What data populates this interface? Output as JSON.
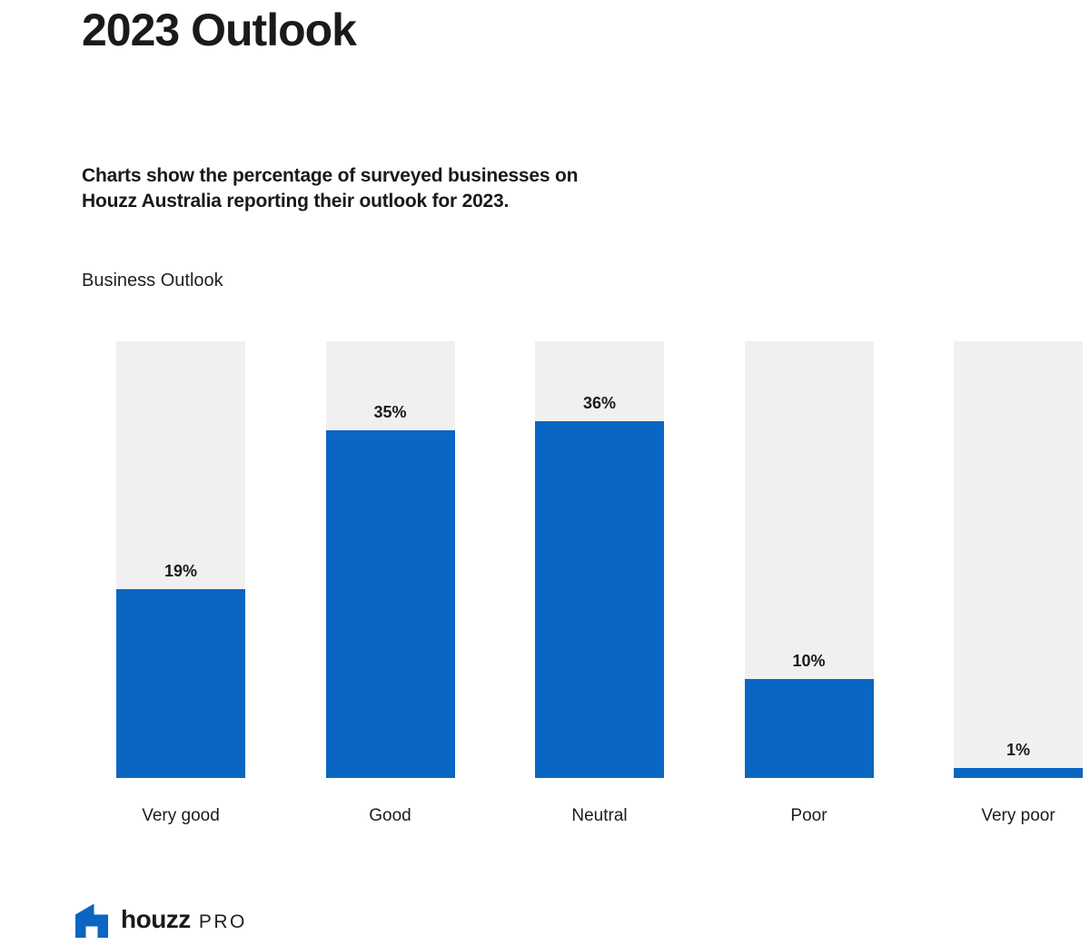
{
  "page": {
    "title": "2023 Outlook",
    "subtitle_lines": [
      "Charts show the percentage of surveyed businesses on",
      "Houzz Australia reporting their outlook for 2023."
    ],
    "section_label": "Business Outlook"
  },
  "chart_data": {
    "type": "bar",
    "title": "Business Outlook",
    "categories": [
      "Very good",
      "Good",
      "Neutral",
      "Poor",
      "Very poor"
    ],
    "values": [
      19,
      35,
      36,
      10,
      1
    ],
    "value_labels": [
      "19%",
      "35%",
      "36%",
      "10%",
      "1%"
    ],
    "unit": "%",
    "xlabel": "",
    "ylabel": "",
    "layout": {
      "orientation": "vertical",
      "grid": false,
      "legend": "none",
      "value_labels_position": "above-fill",
      "track_max_percent": 44,
      "bar_color": "#0a66c2",
      "track_color": "#f0f0f0"
    }
  },
  "footer": {
    "brand": "houzz",
    "brand_suffix": "PRO",
    "brand_blue": "#0a66c2"
  }
}
